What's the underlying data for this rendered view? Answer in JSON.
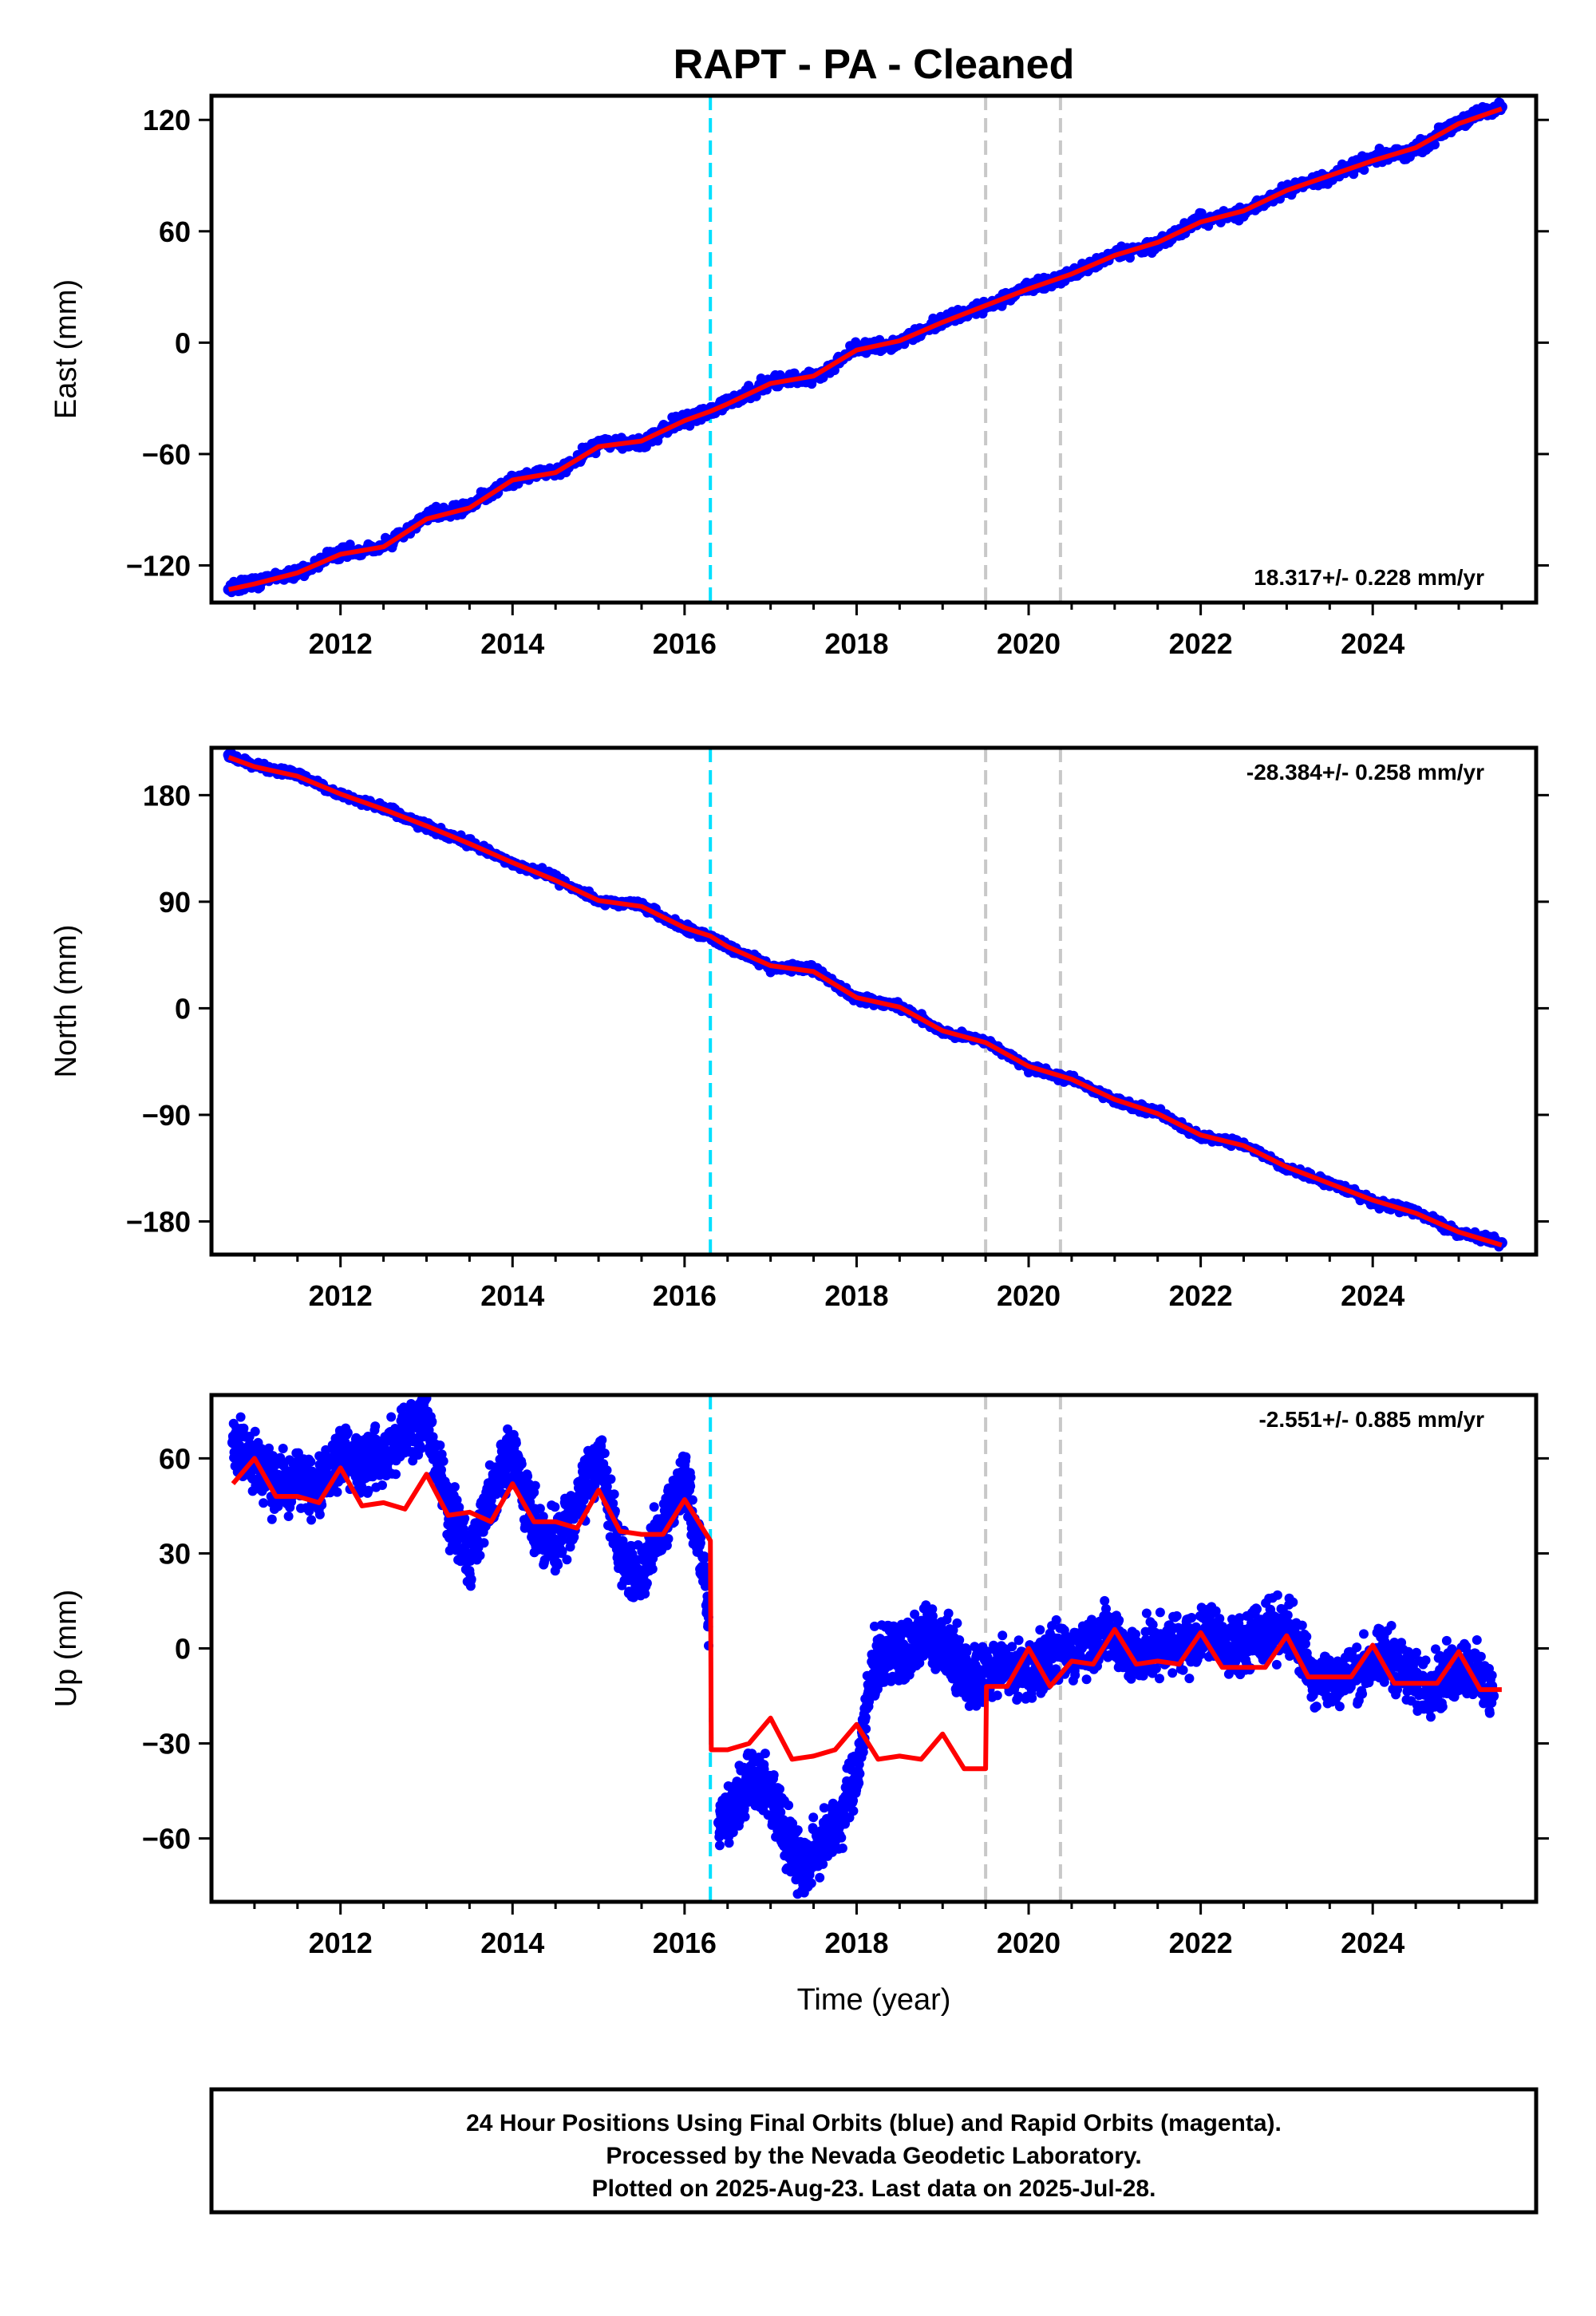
{
  "title": "RAPT  - PA - Cleaned",
  "x_axis_label": "Time (year)",
  "footer": {
    "line1": "24 Hour Positions Using Final Orbits (blue) and Rapid Orbits (magenta).",
    "line2": "Processed by the Nevada Geodetic Laboratory.",
    "line3": "Plotted on 2025-Aug-23. Last data on 2025-Jul-28."
  },
  "colors": {
    "data_points": "#0000ff",
    "model_line": "#ff0000",
    "event_cyan": "#00e0ff",
    "event_gray": "#c8c8c8",
    "frame": "#000000"
  },
  "chart_data": [
    {
      "type": "scatter",
      "component": "east",
      "ylabel": "East (mm)",
      "rate_text": "18.317+/- 0.228 mm/yr",
      "xlim": [
        2010.5,
        2025.9
      ],
      "ylim": [
        -140,
        133
      ],
      "x_ticks": [
        2012,
        2014,
        2016,
        2018,
        2020,
        2022,
        2024
      ],
      "y_ticks": [
        120,
        60,
        0,
        -60,
        -120
      ],
      "y_tick_labels": [
        "120",
        "60",
        "0",
        "−60",
        "−120"
      ],
      "event_lines": [
        {
          "x": 2016.3,
          "style": "cyan"
        },
        {
          "x": 2019.5,
          "style": "gray"
        },
        {
          "x": 2020.37,
          "style": "gray"
        }
      ],
      "series": [
        {
          "kind": "points",
          "x": [
            2010.7,
            2011.0,
            2011.5,
            2012.0,
            2012.5,
            2013.0,
            2013.5,
            2014.0,
            2014.5,
            2015.0,
            2015.5,
            2016.0,
            2016.3,
            2016.5,
            2017.0,
            2017.5,
            2018.0,
            2018.5,
            2019.0,
            2019.5,
            2020.0,
            2020.5,
            2021.0,
            2021.5,
            2022.0,
            2022.5,
            2023.0,
            2023.5,
            2024.0,
            2024.5,
            2025.0,
            2025.5
          ],
          "y": [
            -133,
            -129,
            -124,
            -113,
            -110,
            -94,
            -88,
            -73,
            -70,
            -55,
            -54,
            -41,
            -37,
            -32,
            -21,
            -19,
            -3,
            0,
            12,
            19,
            30,
            36,
            48,
            53,
            66,
            70,
            83,
            89,
            99,
            104,
            119,
            127
          ]
        },
        {
          "kind": "line",
          "x": [
            2010.7,
            2011.0,
            2011.5,
            2012.0,
            2012.5,
            2013.0,
            2013.5,
            2014.0,
            2014.5,
            2015.0,
            2015.5,
            2016.0,
            2016.3,
            2016.5,
            2017.0,
            2017.5,
            2018.0,
            2018.5,
            2019.0,
            2019.5,
            2020.0,
            2020.5,
            2021.0,
            2021.5,
            2022.0,
            2022.5,
            2023.0,
            2023.5,
            2024.0,
            2024.5,
            2025.0,
            2025.5
          ],
          "y": [
            -133,
            -130,
            -124,
            -114,
            -110,
            -95,
            -89,
            -74,
            -70,
            -56,
            -53,
            -42,
            -37,
            -33,
            -22,
            -18,
            -4,
            1,
            11,
            20,
            29,
            37,
            47,
            54,
            65,
            71,
            82,
            90,
            98,
            105,
            118,
            126
          ]
        }
      ]
    },
    {
      "type": "scatter",
      "component": "north",
      "ylabel": "North (mm)",
      "rate_text": "-28.384+/- 0.258 mm/yr",
      "xlim": [
        2010.5,
        2025.9
      ],
      "ylim": [
        -208,
        220
      ],
      "x_ticks": [
        2012,
        2014,
        2016,
        2018,
        2020,
        2022,
        2024
      ],
      "y_ticks": [
        180,
        90,
        0,
        -90,
        -180
      ],
      "y_tick_labels": [
        "180",
        "90",
        "0",
        "−90",
        "−180"
      ],
      "event_lines": [
        {
          "x": 2016.3,
          "style": "cyan"
        },
        {
          "x": 2019.5,
          "style": "gray"
        },
        {
          "x": 2020.37,
          "style": "gray"
        }
      ],
      "series": [
        {
          "kind": "points",
          "x": [
            2010.7,
            2011.0,
            2011.5,
            2012.0,
            2012.5,
            2013.0,
            2013.5,
            2014.0,
            2014.5,
            2015.0,
            2015.5,
            2016.0,
            2016.3,
            2016.5,
            2017.0,
            2017.5,
            2018.0,
            2018.5,
            2019.0,
            2019.5,
            2020.0,
            2020.5,
            2021.0,
            2021.5,
            2022.0,
            2022.5,
            2023.0,
            2023.5,
            2024.0,
            2024.5,
            2025.0,
            2025.5
          ],
          "y": [
            214,
            205,
            198,
            180,
            170,
            153,
            140,
            122,
            110,
            90,
            87,
            67,
            60,
            52,
            35,
            34,
            8,
            2,
            -20,
            -28,
            -50,
            -60,
            -78,
            -88,
            -108,
            -115,
            -135,
            -147,
            -163,
            -172,
            -190,
            -198
          ]
        },
        {
          "kind": "line",
          "x": [
            2010.7,
            2011.0,
            2011.5,
            2012.0,
            2012.5,
            2013.0,
            2013.5,
            2014.0,
            2014.5,
            2015.0,
            2015.5,
            2016.0,
            2016.3,
            2016.5,
            2017.0,
            2017.5,
            2018.0,
            2018.5,
            2019.0,
            2019.5,
            2020.0,
            2020.5,
            2021.0,
            2021.5,
            2022.0,
            2022.5,
            2023.0,
            2023.5,
            2024.0,
            2024.5,
            2025.0,
            2025.5
          ],
          "y": [
            212,
            204,
            196,
            181,
            168,
            154,
            139,
            123,
            108,
            91,
            86,
            68,
            61,
            52,
            36,
            31,
            9,
            1,
            -19,
            -29,
            -49,
            -60,
            -77,
            -89,
            -107,
            -116,
            -134,
            -148,
            -162,
            -173,
            -189,
            -200
          ]
        }
      ]
    },
    {
      "type": "scatter",
      "component": "up",
      "ylabel": "Up (mm)",
      "rate_text": "-2.551+/- 0.885 mm/yr",
      "xlim": [
        2010.5,
        2025.9
      ],
      "ylim": [
        -80,
        80
      ],
      "x_ticks": [
        2012,
        2014,
        2016,
        2018,
        2020,
        2022,
        2024
      ],
      "y_ticks": [
        60,
        30,
        0,
        -30,
        -60
      ],
      "y_tick_labels": [
        "60",
        "30",
        "0",
        "−30",
        "−60"
      ],
      "event_lines": [
        {
          "x": 2016.3,
          "style": "cyan"
        },
        {
          "x": 2019.5,
          "style": "gray"
        },
        {
          "x": 2020.37,
          "style": "gray"
        }
      ],
      "series": [
        {
          "kind": "points",
          "x": [
            2010.75,
            2011.0,
            2011.25,
            2011.5,
            2011.75,
            2012.0,
            2012.25,
            2012.5,
            2012.75,
            2013.0,
            2013.25,
            2013.5,
            2013.75,
            2014.0,
            2014.25,
            2014.5,
            2014.75,
            2015.0,
            2015.25,
            2015.5,
            2015.75,
            2016.0,
            2016.25,
            2016.4,
            2016.6,
            2016.8,
            2017.0,
            2017.2,
            2017.4,
            2017.6,
            2017.8,
            2018.0,
            2018.2,
            2018.4,
            2018.6,
            2018.8,
            2019.0,
            2019.2,
            2019.4,
            2019.7,
            2020.0,
            2020.3,
            2020.6,
            2020.9,
            2021.2,
            2021.5,
            2021.8,
            2022.1,
            2022.4,
            2022.7,
            2023.0,
            2023.3,
            2023.6,
            2023.9,
            2024.2,
            2024.5,
            2024.8,
            2025.1,
            2025.4
          ],
          "y": [
            65,
            60,
            50,
            55,
            50,
            62,
            58,
            60,
            68,
            70,
            45,
            28,
            50,
            62,
            40,
            32,
            45,
            62,
            30,
            22,
            40,
            55,
            20,
            -55,
            -50,
            -40,
            -45,
            -60,
            -70,
            -60,
            -55,
            -40,
            -5,
            0,
            -2,
            5,
            2,
            -5,
            -10,
            -5,
            -8,
            -2,
            0,
            5,
            -2,
            0,
            2,
            5,
            0,
            5,
            8,
            -8,
            -10,
            -6,
            -2,
            -12,
            -10,
            -5,
            -15
          ]
        },
        {
          "kind": "line",
          "x": [
            2010.75,
            2011.0,
            2011.25,
            2011.5,
            2011.75,
            2012.0,
            2012.25,
            2012.5,
            2012.75,
            2013.0,
            2013.25,
            2013.5,
            2013.75,
            2014.0,
            2014.25,
            2014.5,
            2014.75,
            2015.0,
            2015.25,
            2015.5,
            2015.75,
            2016.0,
            2016.3,
            2016.31,
            2016.5,
            2016.75,
            2017.0,
            2017.25,
            2017.5,
            2017.75,
            2018.0,
            2018.25,
            2018.5,
            2018.75,
            2019.0,
            2019.25,
            2019.5,
            2019.51,
            2019.75,
            2020.0,
            2020.25,
            2020.5,
            2020.75,
            2021.0,
            2021.25,
            2021.5,
            2021.75,
            2022.0,
            2022.25,
            2022.5,
            2022.75,
            2023.0,
            2023.25,
            2023.5,
            2023.75,
            2024.0,
            2024.25,
            2024.5,
            2024.75,
            2025.0,
            2025.25,
            2025.5
          ],
          "y": [
            52,
            60,
            48,
            48,
            46,
            57,
            45,
            46,
            44,
            55,
            42,
            43,
            40,
            52,
            40,
            40,
            38,
            50,
            37,
            36,
            36,
            47,
            34,
            -32,
            -32,
            -30,
            -22,
            -35,
            -34,
            -32,
            -24,
            -35,
            -34,
            -35,
            -27,
            -38,
            -38,
            -12,
            -12,
            0,
            -12,
            -4,
            -5,
            6,
            -5,
            -4,
            -5,
            5,
            -6,
            -6,
            -6,
            4,
            -9,
            -9,
            -9,
            1,
            -11,
            -11,
            -11,
            -1,
            -13,
            -13
          ]
        }
      ]
    }
  ]
}
